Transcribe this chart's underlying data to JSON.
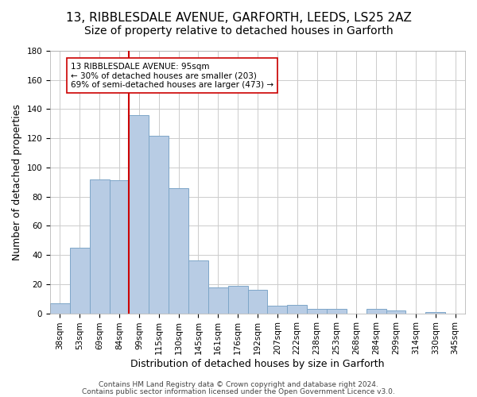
{
  "title": "13, RIBBLESDALE AVENUE, GARFORTH, LEEDS, LS25 2AZ",
  "subtitle": "Size of property relative to detached houses in Garforth",
  "xlabel": "Distribution of detached houses by size in Garforth",
  "ylabel": "Number of detached properties",
  "bar_labels": [
    "38sqm",
    "53sqm",
    "69sqm",
    "84sqm",
    "99sqm",
    "115sqm",
    "130sqm",
    "145sqm",
    "161sqm",
    "176sqm",
    "192sqm",
    "207sqm",
    "222sqm",
    "238sqm",
    "253sqm",
    "268sqm",
    "284sqm",
    "299sqm",
    "314sqm",
    "330sqm",
    "345sqm"
  ],
  "bar_values": [
    7,
    45,
    92,
    91,
    136,
    122,
    86,
    36,
    18,
    19,
    16,
    5,
    6,
    3,
    3,
    0,
    3,
    2,
    0,
    1,
    0
  ],
  "bar_color": "#b8cce4",
  "bar_edge_color": "#7ea6c8",
  "vline_pos": 3.5,
  "vline_color": "#cc0000",
  "annotation_line1": "13 RIBBLESDALE AVENUE: 95sqm",
  "annotation_line2": "← 30% of detached houses are smaller (203)",
  "annotation_line3": "69% of semi-detached houses are larger (473) →",
  "annotation_box_color": "#ffffff",
  "annotation_box_edge": "#cc0000",
  "ylim": [
    0,
    180
  ],
  "yticks": [
    0,
    20,
    40,
    60,
    80,
    100,
    120,
    140,
    160,
    180
  ],
  "footer1": "Contains HM Land Registry data © Crown copyright and database right 2024.",
  "footer2": "Contains public sector information licensed under the Open Government Licence v3.0.",
  "background_color": "#ffffff",
  "grid_color": "#cccccc",
  "title_fontsize": 11,
  "subtitle_fontsize": 10,
  "axis_label_fontsize": 9,
  "tick_fontsize": 7.5,
  "footer_fontsize": 6.5,
  "annotation_fontsize": 7.5
}
